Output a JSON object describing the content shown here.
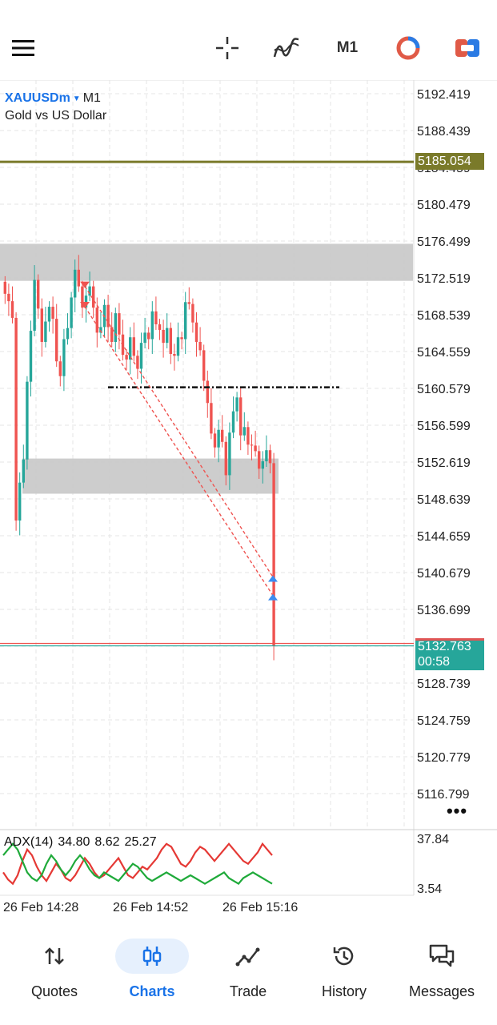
{
  "toolbar": {
    "timeframe": "M1",
    "items": [
      "menu-icon",
      "crosshair-icon",
      "indicators-icon",
      "timeframe",
      "objects-icon",
      "one-click-trading-icon"
    ]
  },
  "symbol": {
    "name": "XAUUSDm",
    "timeframe": "M1",
    "description": "Gold vs US Dollar"
  },
  "price_scale": [
    "5192.419",
    "5188.439",
    "5184.459",
    "5180.479",
    "5176.499",
    "5172.519",
    "5168.539",
    "5164.559",
    "5160.579",
    "5156.599",
    "5152.619",
    "5148.639",
    "5144.659",
    "5140.679",
    "5136.699",
    "5132.719",
    "5128.739",
    "5124.759",
    "5120.779",
    "5116.799"
  ],
  "price_level": {
    "label": "5185.054",
    "value": 5185.054,
    "color": "#7a7a2a"
  },
  "bid": {
    "price": "5132.763",
    "timer": "00:58",
    "color": "#26a69a"
  },
  "indicator": {
    "name": "ADX(14)",
    "values": [
      "34.80",
      "8.62",
      "25.27"
    ],
    "scale_max": "37.84",
    "scale_min": "3.54"
  },
  "time_axis": [
    "26 Feb 14:28",
    "26 Feb 14:52",
    "26 Feb 15:16"
  ],
  "more_label": "•••",
  "colors": {
    "bull": "#26a69a",
    "bear": "#ef5350",
    "accent": "#1a73e8",
    "zone": "#c8c8c8",
    "grid": "#e6e6e6"
  },
  "nav": [
    {
      "label": "Quotes",
      "icon": "quotes-icon",
      "active": false
    },
    {
      "label": "Charts",
      "icon": "charts-icon",
      "active": true
    },
    {
      "label": "Trade",
      "icon": "trade-icon",
      "active": false
    },
    {
      "label": "History",
      "icon": "history-icon",
      "active": false
    },
    {
      "label": "Messages",
      "icon": "messages-icon",
      "active": false
    }
  ]
}
